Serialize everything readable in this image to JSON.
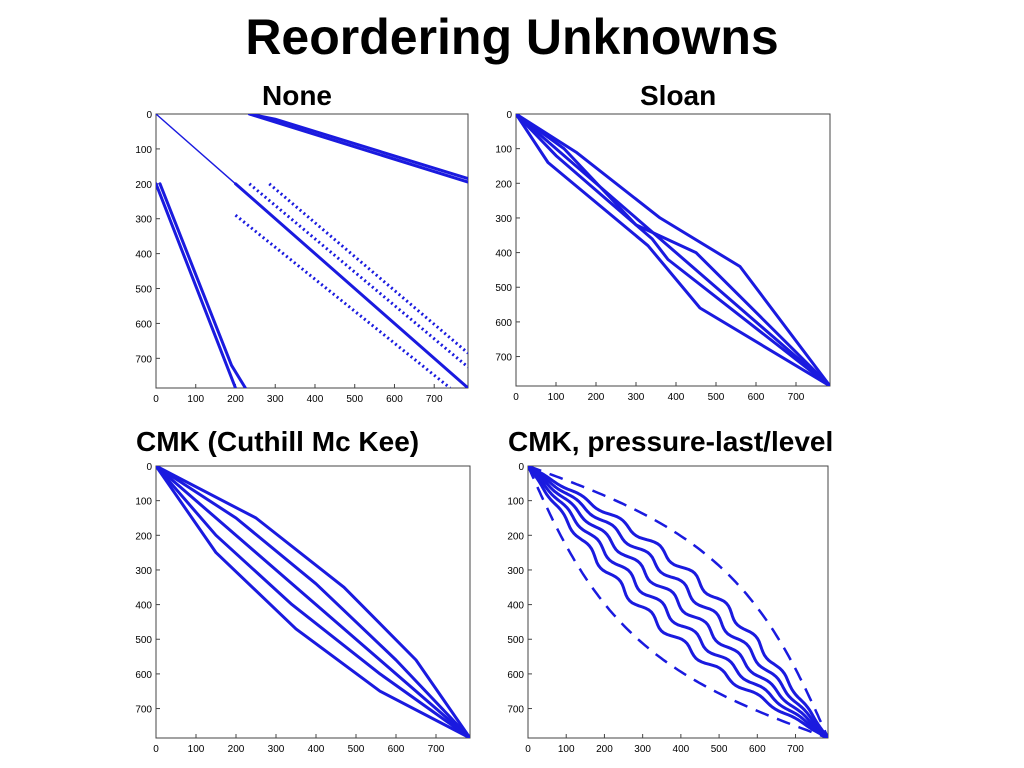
{
  "page": {
    "title": "Reordering Unknowns",
    "accent_color": "#1a1adf"
  },
  "chart_data": [
    {
      "type": "scatter",
      "title": "None",
      "xlim": [
        0,
        785
      ],
      "ylim": [
        0,
        785
      ],
      "y_inverted": true,
      "xticks": [
        0,
        100,
        200,
        300,
        400,
        500,
        600,
        700
      ],
      "yticks": [
        0,
        100,
        200,
        300,
        400,
        500,
        600,
        700
      ],
      "series": [
        {
          "style": "thin",
          "points": [
            [
              0,
              0
            ],
            [
              200,
              200
            ]
          ]
        },
        {
          "style": "solid",
          "points": [
            [
              200,
              200
            ],
            [
              785,
              785
            ]
          ]
        },
        {
          "style": "dash",
          "points": [
            [
              235,
              200
            ],
            [
              785,
              725
            ]
          ]
        },
        {
          "style": "dash",
          "points": [
            [
              200,
              290
            ],
            [
              740,
              785
            ]
          ]
        },
        {
          "style": "dash",
          "points": [
            [
              285,
              200
            ],
            [
              785,
              685
            ]
          ]
        },
        {
          "style": "solid",
          "points": [
            [
              235,
              0
            ],
            [
              785,
              195
            ]
          ]
        },
        {
          "style": "solid",
          "points": [
            [
              235,
              0
            ],
            [
              300,
              15
            ],
            [
              785,
              185
            ]
          ]
        },
        {
          "style": "solid",
          "points": [
            [
              0,
              200
            ],
            [
              200,
              785
            ]
          ]
        },
        {
          "style": "solid",
          "points": [
            [
              10,
              200
            ],
            [
              190,
              720
            ],
            [
              225,
              785
            ]
          ]
        }
      ]
    },
    {
      "type": "scatter",
      "title": "Sloan",
      "xlim": [
        0,
        785
      ],
      "ylim": [
        0,
        785
      ],
      "y_inverted": true,
      "xticks": [
        0,
        100,
        200,
        300,
        400,
        500,
        600,
        700
      ],
      "yticks": [
        0,
        100,
        200,
        300,
        400,
        500,
        600,
        700
      ],
      "series": [
        {
          "style": "solid",
          "points": [
            [
              0,
              0
            ],
            [
              785,
              785
            ]
          ]
        },
        {
          "style": "solid",
          "points": [
            [
              0,
              0
            ],
            [
              120,
              100
            ],
            [
              300,
              320
            ],
            [
              450,
              400
            ],
            [
              785,
              785
            ]
          ]
        },
        {
          "style": "solid",
          "points": [
            [
              0,
              0
            ],
            [
              100,
              120
            ],
            [
              340,
              360
            ],
            [
              380,
              420
            ],
            [
              785,
              785
            ]
          ]
        },
        {
          "style": "solid",
          "points": [
            [
              0,
              0
            ],
            [
              150,
              110
            ],
            [
              360,
              300
            ],
            [
              560,
              440
            ],
            [
              785,
              785
            ]
          ]
        },
        {
          "style": "solid",
          "points": [
            [
              0,
              0
            ],
            [
              80,
              140
            ],
            [
              330,
              380
            ],
            [
              460,
              560
            ],
            [
              785,
              785
            ]
          ]
        }
      ]
    },
    {
      "type": "scatter",
      "title": "CMK (Cuthill Mc Kee)",
      "xlim": [
        0,
        785
      ],
      "ylim": [
        0,
        785
      ],
      "y_inverted": true,
      "xticks": [
        0,
        100,
        200,
        300,
        400,
        500,
        600,
        700
      ],
      "yticks": [
        0,
        100,
        200,
        300,
        400,
        500,
        600,
        700
      ],
      "series": [
        {
          "style": "solid",
          "points": [
            [
              0,
              0
            ],
            [
              785,
              785
            ]
          ]
        },
        {
          "style": "solid",
          "points": [
            [
              0,
              0
            ],
            [
              200,
              150
            ],
            [
              400,
              340
            ],
            [
              600,
              560
            ],
            [
              785,
              785
            ]
          ]
        },
        {
          "style": "solid",
          "points": [
            [
              0,
              0
            ],
            [
              150,
              200
            ],
            [
              340,
              400
            ],
            [
              560,
              600
            ],
            [
              785,
              785
            ]
          ]
        },
        {
          "style": "solid",
          "points": [
            [
              0,
              0
            ],
            [
              250,
              150
            ],
            [
              470,
              350
            ],
            [
              650,
              560
            ],
            [
              785,
              785
            ]
          ]
        },
        {
          "style": "solid",
          "points": [
            [
              0,
              0
            ],
            [
              150,
              250
            ],
            [
              350,
              470
            ],
            [
              560,
              650
            ],
            [
              785,
              785
            ]
          ]
        }
      ]
    },
    {
      "type": "scatter",
      "title": "CMK, pressure-last/level",
      "xlim": [
        0,
        785
      ],
      "ylim": [
        0,
        785
      ],
      "y_inverted": true,
      "xticks": [
        0,
        100,
        200,
        300,
        400,
        500,
        600,
        700
      ],
      "yticks": [
        0,
        100,
        200,
        300,
        400,
        500,
        600,
        700
      ],
      "series": [
        {
          "style": "wave",
          "points": [
            [
              0,
              0
            ],
            [
              785,
              785
            ]
          ],
          "offset": 0
        },
        {
          "style": "wave",
          "points": [
            [
              0,
              0
            ],
            [
              785,
              785
            ]
          ],
          "offset": 40
        },
        {
          "style": "wave",
          "points": [
            [
              0,
              0
            ],
            [
              785,
              785
            ]
          ],
          "offset": -40
        },
        {
          "style": "wave",
          "points": [
            [
              0,
              0
            ],
            [
              785,
              785
            ]
          ],
          "offset": 80
        },
        {
          "style": "wave",
          "points": [
            [
              0,
              0
            ],
            [
              785,
              785
            ]
          ],
          "offset": -80
        },
        {
          "style": "dash2",
          "points": [
            [
              0,
              0
            ],
            [
              785,
              785
            ]
          ],
          "offset": 150
        },
        {
          "style": "dash2",
          "points": [
            [
              0,
              0
            ],
            [
              785,
              785
            ]
          ],
          "offset": -150
        }
      ]
    }
  ]
}
